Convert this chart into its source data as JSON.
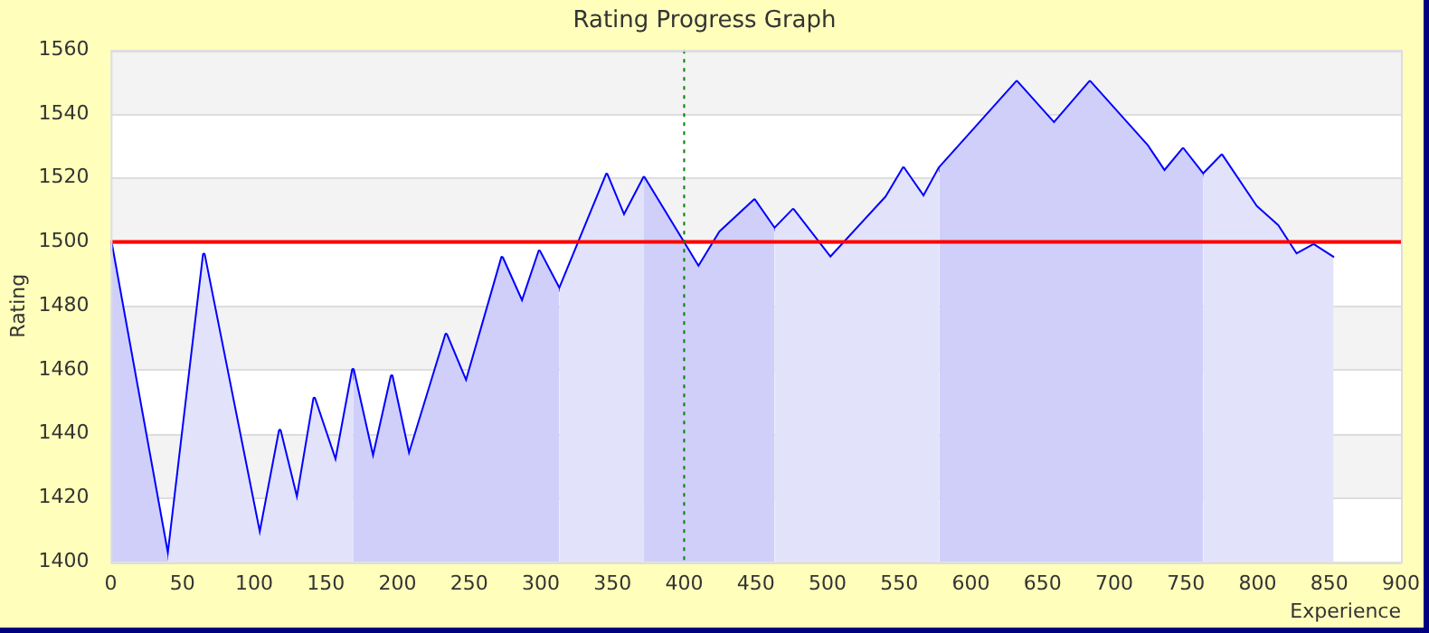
{
  "chart_data": {
    "type": "line",
    "title": "Rating Progress Graph",
    "xlabel": "Experience",
    "ylabel": "Rating",
    "xlim": [
      0,
      900
    ],
    "xticks": [
      0,
      50,
      100,
      150,
      200,
      250,
      300,
      350,
      400,
      450,
      500,
      550,
      600,
      650,
      700,
      750,
      800,
      850,
      900
    ],
    "ylim": [
      1400,
      1560
    ],
    "yticks": [
      1400,
      1420,
      1440,
      1460,
      1480,
      1500,
      1520,
      1540,
      1560
    ],
    "grid": "y",
    "legend": false,
    "marker": "none",
    "ref_lines": [
      {
        "axis": "y",
        "value": 1500,
        "color": "#ff0000",
        "line_style": "solid"
      },
      {
        "axis": "x",
        "value": 400,
        "color": "#008000",
        "line_style": "dotted"
      }
    ],
    "series": [
      {
        "type": "area",
        "color": "#cfcffa",
        "x": [
          0,
          40
        ],
        "values": [
          1500,
          1401
        ]
      },
      {
        "type": "area",
        "color": "#e2e2fb",
        "x": [
          40,
          65,
          104,
          118,
          130,
          142,
          157,
          169
        ],
        "values": [
          1401,
          1496,
          1408,
          1441,
          1419,
          1451,
          1431,
          1460
        ]
      },
      {
        "type": "area",
        "color": "#cfcffa",
        "x": [
          169,
          183,
          196,
          208,
          234,
          248,
          273,
          287,
          299,
          313
        ],
        "values": [
          1460,
          1432,
          1458,
          1433,
          1471,
          1456,
          1495,
          1481,
          1497,
          1485
        ]
      },
      {
        "type": "area",
        "color": "#e2e2fb",
        "x": [
          313,
          346,
          358,
          372
        ],
        "values": [
          1485,
          1521,
          1508,
          1520
        ]
      },
      {
        "type": "area",
        "color": "#cfcffa",
        "x": [
          372,
          410,
          425,
          449,
          463
        ],
        "values": [
          1520,
          1492,
          1503,
          1513,
          1504
        ]
      },
      {
        "type": "area",
        "color": "#e2e2fb",
        "x": [
          463,
          476,
          502,
          541,
          553,
          567,
          578
        ],
        "values": [
          1504,
          1510,
          1495,
          1514,
          1523,
          1514,
          1523
        ]
      },
      {
        "type": "area",
        "color": "#cfcffa",
        "x": [
          578,
          632,
          658,
          683,
          723,
          735,
          748,
          762
        ],
        "values": [
          1523,
          1550,
          1537,
          1550,
          1530,
          1522,
          1529,
          1521
        ]
      },
      {
        "type": "area",
        "color": "#e2e2fb",
        "x": [
          762,
          775,
          799,
          814,
          827,
          839,
          853
        ],
        "values": [
          1521,
          1527,
          1511,
          1505,
          1496,
          1499,
          1495
        ]
      },
      {
        "type": "line",
        "color": "#0000ff",
        "x": [
          0,
          40,
          65,
          104,
          118,
          130,
          142,
          157,
          169,
          183,
          196,
          208,
          234,
          248,
          273,
          287,
          299,
          313,
          346,
          358,
          372,
          410,
          425,
          449,
          463,
          476,
          502,
          541,
          553,
          567,
          578,
          632,
          658,
          683,
          723,
          735,
          748,
          762,
          775,
          799,
          814,
          827,
          839,
          853
        ],
        "values": [
          1500,
          1401,
          1496,
          1408,
          1441,
          1419,
          1451,
          1431,
          1460,
          1432,
          1458,
          1433,
          1471,
          1456,
          1495,
          1481,
          1497,
          1485,
          1521,
          1508,
          1520,
          1492,
          1503,
          1513,
          1504,
          1510,
          1495,
          1514,
          1523,
          1514,
          1523,
          1550,
          1537,
          1550,
          1530,
          1522,
          1529,
          1521,
          1527,
          1511,
          1505,
          1496,
          1499,
          1495
        ]
      }
    ]
  }
}
